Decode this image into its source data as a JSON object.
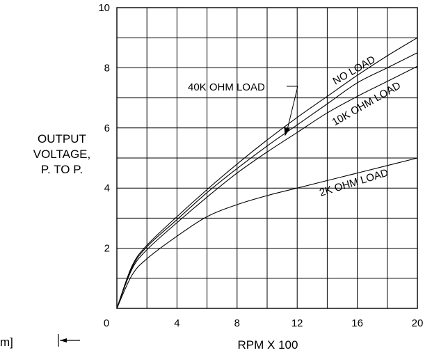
{
  "chart_data": {
    "type": "line",
    "title": "",
    "xlabel": "RPM  X  100",
    "ylabel_lines": [
      "OUTPUT",
      "VOLTAGE,",
      "P.  TO  P."
    ],
    "xlim": [
      0,
      20
    ],
    "ylim": [
      0,
      10
    ],
    "x_ticks": [
      0,
      4,
      8,
      12,
      16,
      20
    ],
    "y_ticks": [
      2,
      4,
      6,
      8,
      10
    ],
    "x_grid_step": 2,
    "y_grid_step": 1,
    "grid": true,
    "series": [
      {
        "name": "NO  LOAD",
        "x": [
          0,
          1,
          2,
          4,
          6,
          8,
          10,
          12,
          14,
          16,
          18,
          20
        ],
        "y": [
          0,
          1.4,
          2.1,
          3.05,
          3.95,
          4.8,
          5.6,
          6.35,
          7.05,
          7.75,
          8.4,
          9.0
        ]
      },
      {
        "name": "40K  OHM  LOAD",
        "x": [
          0,
          1,
          2,
          4,
          6,
          8,
          10,
          12,
          14,
          16,
          18,
          20
        ],
        "y": [
          0,
          1.35,
          2.05,
          2.95,
          3.85,
          4.65,
          5.4,
          6.1,
          6.8,
          7.5,
          8.0,
          8.5
        ]
      },
      {
        "name": "10K  OHM  LOAD",
        "x": [
          0,
          1,
          2,
          4,
          6,
          8,
          10,
          12,
          14,
          16,
          18,
          20
        ],
        "y": [
          0,
          1.3,
          1.95,
          2.85,
          3.7,
          4.5,
          5.2,
          5.85,
          6.5,
          7.05,
          7.55,
          8.05
        ]
      },
      {
        "name": "2K  OHM  LOAD",
        "x": [
          0,
          1,
          2,
          4,
          6,
          8,
          10,
          12,
          14,
          16,
          18,
          20
        ],
        "y": [
          0,
          1.1,
          1.65,
          2.4,
          3.05,
          3.45,
          3.75,
          4.0,
          4.25,
          4.5,
          4.75,
          5.0
        ]
      }
    ]
  },
  "stray_text": "m]"
}
